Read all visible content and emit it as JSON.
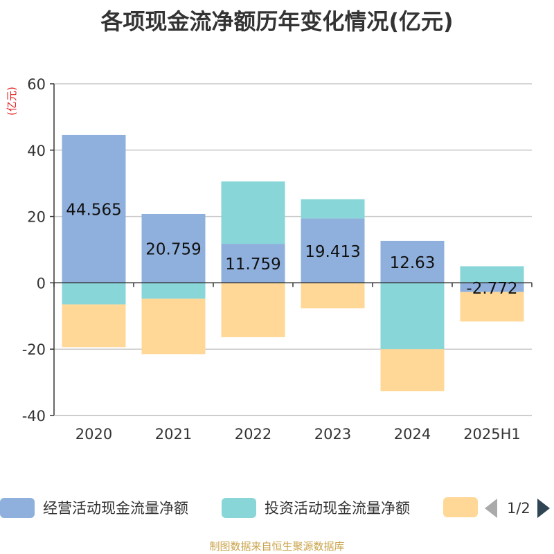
{
  "chart_data": {
    "type": "bar",
    "stacked": true,
    "title": "各项现金流净额历年变化情况(亿元)",
    "ylabel": "(亿元)",
    "ylim": [
      -40,
      60
    ],
    "yticks": [
      -40,
      -20,
      0,
      20,
      40,
      60
    ],
    "grid": true,
    "categories": [
      "2020",
      "2021",
      "2022",
      "2023",
      "2024",
      "2025H1"
    ],
    "series": [
      {
        "name": "经营活动现金流量净额",
        "color": "#8fb0dc",
        "values": [
          44.565,
          20.759,
          11.759,
          19.413,
          12.63,
          -2.772
        ],
        "labels": [
          "44.565",
          "20.759",
          "11.759",
          "19.413",
          "12.63",
          "-2.772"
        ]
      },
      {
        "name": "投资活动现金流量净额",
        "color": "#88d6d8",
        "values": [
          -6.5,
          -4.8,
          18.8,
          5.8,
          -20.0,
          5.0
        ]
      },
      {
        "name": "",
        "color": "#ffd898",
        "values": [
          -12.9,
          -16.7,
          -16.4,
          -7.7,
          -12.7,
          -8.9
        ]
      }
    ],
    "legend_position": "bottom"
  },
  "legend": {
    "page": "1/2"
  },
  "footer": "制图数据来自恒生聚源数据库"
}
